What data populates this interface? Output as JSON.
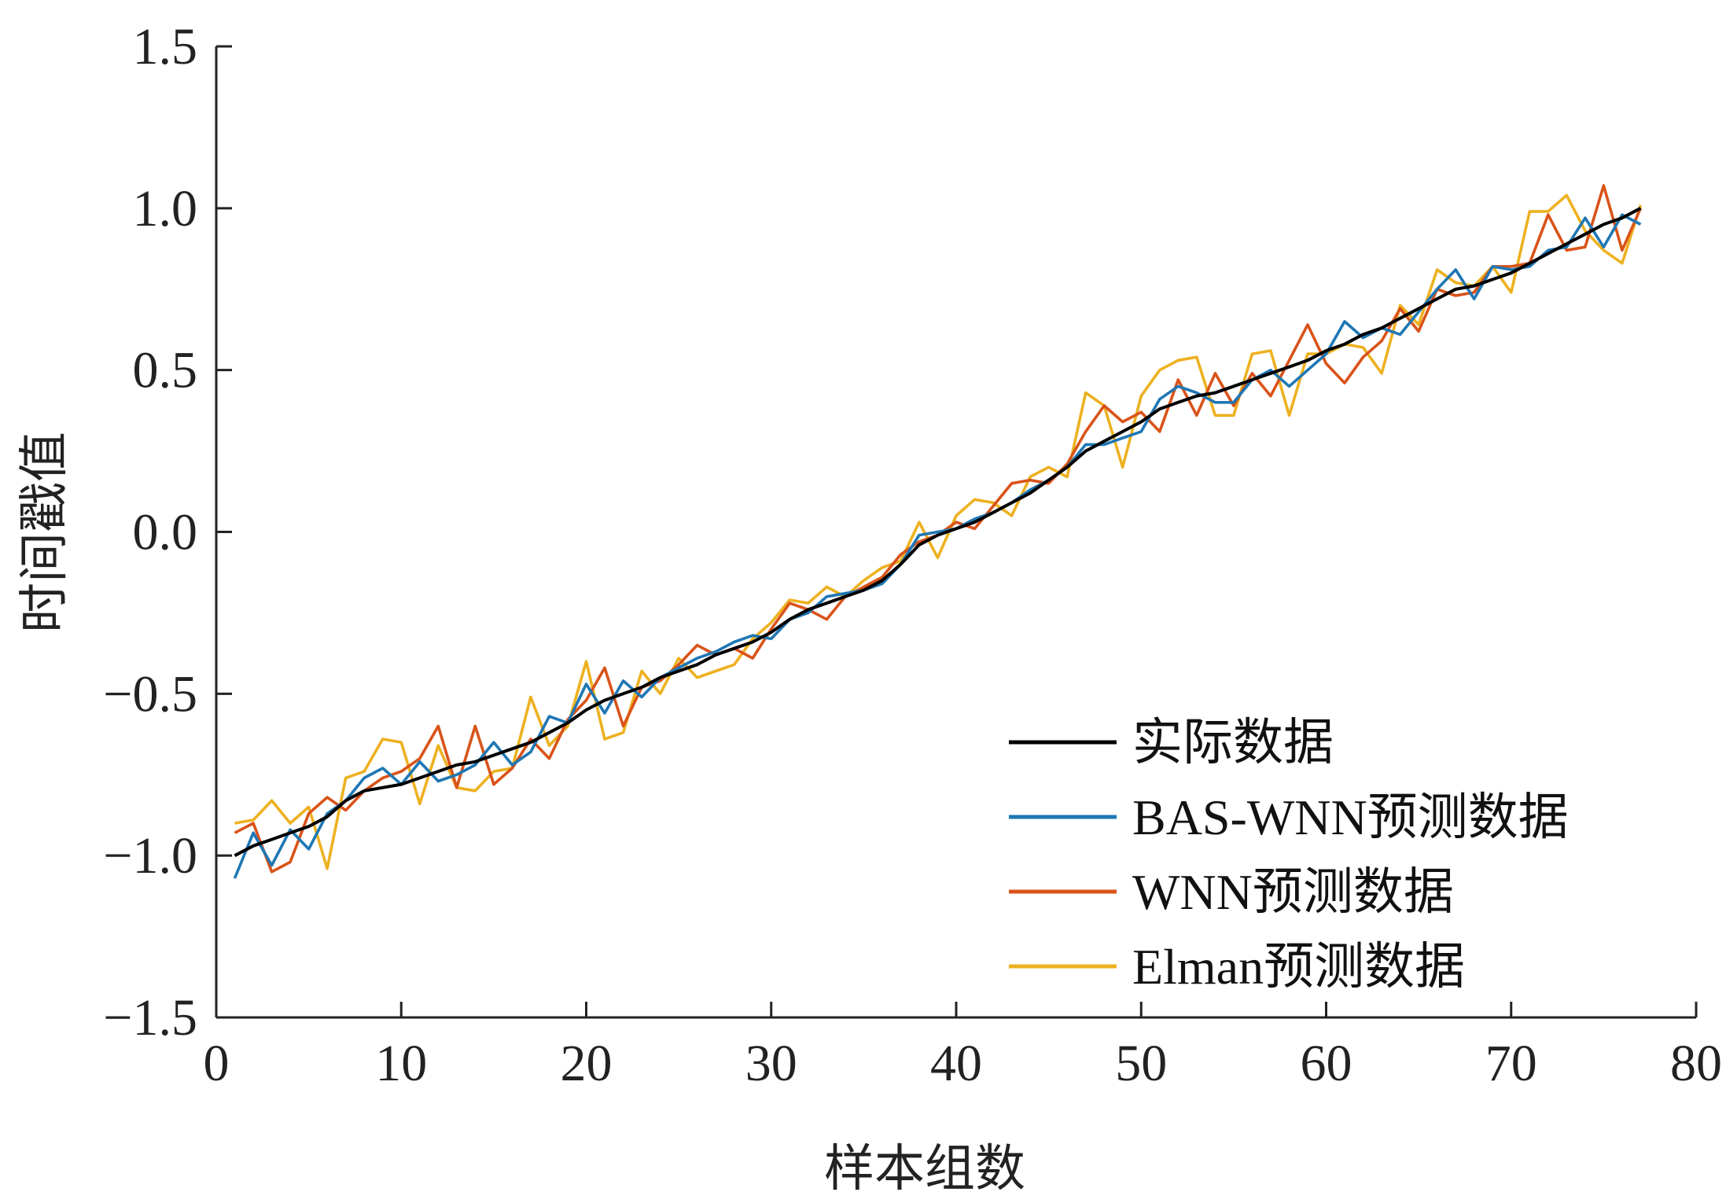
{
  "chart_data": {
    "type": "line",
    "xlabel": "样本组数",
    "ylabel": "时间戳值",
    "xlim": [
      0,
      80
    ],
    "ylim": [
      -1.5,
      1.5
    ],
    "xticks": [
      "0",
      "10",
      "20",
      "30",
      "40",
      "50",
      "60",
      "70",
      "80"
    ],
    "yticks": [
      "1.5",
      "1.0",
      "0.5",
      "0.0",
      "−0.5",
      "−1.0",
      "−1.5"
    ],
    "grid": false,
    "legend_position": "bottom-right",
    "x": [
      1,
      2,
      3,
      4,
      5,
      6,
      7,
      8,
      9,
      10,
      11,
      12,
      13,
      14,
      15,
      16,
      17,
      18,
      19,
      20,
      21,
      22,
      23,
      24,
      25,
      26,
      27,
      28,
      29,
      30,
      31,
      32,
      33,
      34,
      35,
      36,
      37,
      38,
      39,
      40,
      41,
      42,
      43,
      44,
      45,
      46,
      47,
      48,
      49,
      50,
      51,
      52,
      53,
      54,
      55,
      56,
      57,
      58,
      59,
      60,
      61,
      62,
      63,
      64,
      65,
      66,
      67,
      68,
      69,
      70,
      71,
      72,
      73,
      74,
      75,
      76,
      77
    ],
    "series": [
      {
        "name": "实际数据",
        "color": "#000000",
        "values": [
          -1.0,
          -0.97,
          -0.95,
          -0.93,
          -0.91,
          -0.88,
          -0.83,
          -0.8,
          -0.79,
          -0.78,
          -0.76,
          -0.74,
          -0.72,
          -0.71,
          -0.69,
          -0.67,
          -0.65,
          -0.62,
          -0.59,
          -0.55,
          -0.52,
          -0.5,
          -0.48,
          -0.45,
          -0.43,
          -0.41,
          -0.38,
          -0.36,
          -0.34,
          -0.31,
          -0.27,
          -0.24,
          -0.22,
          -0.2,
          -0.18,
          -0.15,
          -0.1,
          -0.04,
          -0.01,
          0.01,
          0.03,
          0.06,
          0.09,
          0.12,
          0.16,
          0.2,
          0.25,
          0.28,
          0.31,
          0.34,
          0.38,
          0.4,
          0.42,
          0.43,
          0.45,
          0.47,
          0.49,
          0.51,
          0.53,
          0.56,
          0.58,
          0.61,
          0.63,
          0.66,
          0.69,
          0.72,
          0.75,
          0.76,
          0.78,
          0.8,
          0.83,
          0.86,
          0.89,
          0.92,
          0.95,
          0.97,
          1.0
        ]
      },
      {
        "name": "BAS-WNN预测数据",
        "color": "#1f77b4",
        "values": [
          -1.07,
          -0.93,
          -1.03,
          -0.92,
          -0.98,
          -0.87,
          -0.83,
          -0.76,
          -0.73,
          -0.78,
          -0.71,
          -0.77,
          -0.75,
          -0.72,
          -0.65,
          -0.72,
          -0.68,
          -0.57,
          -0.59,
          -0.47,
          -0.56,
          -0.46,
          -0.51,
          -0.45,
          -0.42,
          -0.39,
          -0.37,
          -0.34,
          -0.32,
          -0.33,
          -0.27,
          -0.25,
          -0.2,
          -0.19,
          -0.18,
          -0.16,
          -0.1,
          -0.01,
          0.0,
          0.01,
          0.04,
          0.06,
          0.09,
          0.13,
          0.16,
          0.2,
          0.27,
          0.27,
          0.29,
          0.31,
          0.41,
          0.45,
          0.43,
          0.4,
          0.4,
          0.47,
          0.5,
          0.45,
          0.5,
          0.55,
          0.65,
          0.6,
          0.63,
          0.61,
          0.68,
          0.75,
          0.81,
          0.72,
          0.82,
          0.81,
          0.82,
          0.87,
          0.88,
          0.97,
          0.88,
          0.98,
          0.95
        ]
      },
      {
        "name": "WNN预测数据",
        "color": "#d95319",
        "values": [
          -0.93,
          -0.9,
          -1.05,
          -1.02,
          -0.87,
          -0.82,
          -0.86,
          -0.8,
          -0.76,
          -0.74,
          -0.7,
          -0.6,
          -0.79,
          -0.6,
          -0.78,
          -0.73,
          -0.64,
          -0.7,
          -0.58,
          -0.52,
          -0.42,
          -0.6,
          -0.48,
          -0.46,
          -0.41,
          -0.35,
          -0.38,
          -0.36,
          -0.39,
          -0.3,
          -0.22,
          -0.24,
          -0.27,
          -0.2,
          -0.17,
          -0.14,
          -0.07,
          -0.03,
          -0.01,
          0.03,
          0.01,
          0.08,
          0.15,
          0.16,
          0.15,
          0.21,
          0.31,
          0.39,
          0.34,
          0.37,
          0.31,
          0.47,
          0.36,
          0.49,
          0.39,
          0.49,
          0.42,
          0.53,
          0.64,
          0.52,
          0.46,
          0.54,
          0.59,
          0.69,
          0.62,
          0.75,
          0.73,
          0.74,
          0.82,
          0.82,
          0.83,
          0.98,
          0.87,
          0.88,
          1.07,
          0.87,
          1.0
        ]
      },
      {
        "name": "Elman预测数据",
        "color": "#edb120",
        "values": [
          -0.9,
          -0.89,
          -0.83,
          -0.9,
          -0.85,
          -1.04,
          -0.76,
          -0.74,
          -0.64,
          -0.65,
          -0.84,
          -0.66,
          -0.79,
          -0.8,
          -0.74,
          -0.73,
          -0.51,
          -0.66,
          -0.6,
          -0.4,
          -0.64,
          -0.62,
          -0.43,
          -0.5,
          -0.39,
          -0.45,
          -0.43,
          -0.41,
          -0.33,
          -0.28,
          -0.21,
          -0.22,
          -0.17,
          -0.2,
          -0.15,
          -0.11,
          -0.09,
          0.03,
          -0.08,
          0.05,
          0.1,
          0.09,
          0.05,
          0.17,
          0.2,
          0.17,
          0.43,
          0.39,
          0.2,
          0.42,
          0.5,
          0.53,
          0.54,
          0.36,
          0.36,
          0.55,
          0.56,
          0.36,
          0.55,
          0.55,
          0.58,
          0.57,
          0.49,
          0.7,
          0.64,
          0.81,
          0.77,
          0.76,
          0.82,
          0.74,
          0.99,
          0.99,
          1.04,
          0.93,
          0.87,
          0.83,
          1.01
        ]
      }
    ]
  }
}
